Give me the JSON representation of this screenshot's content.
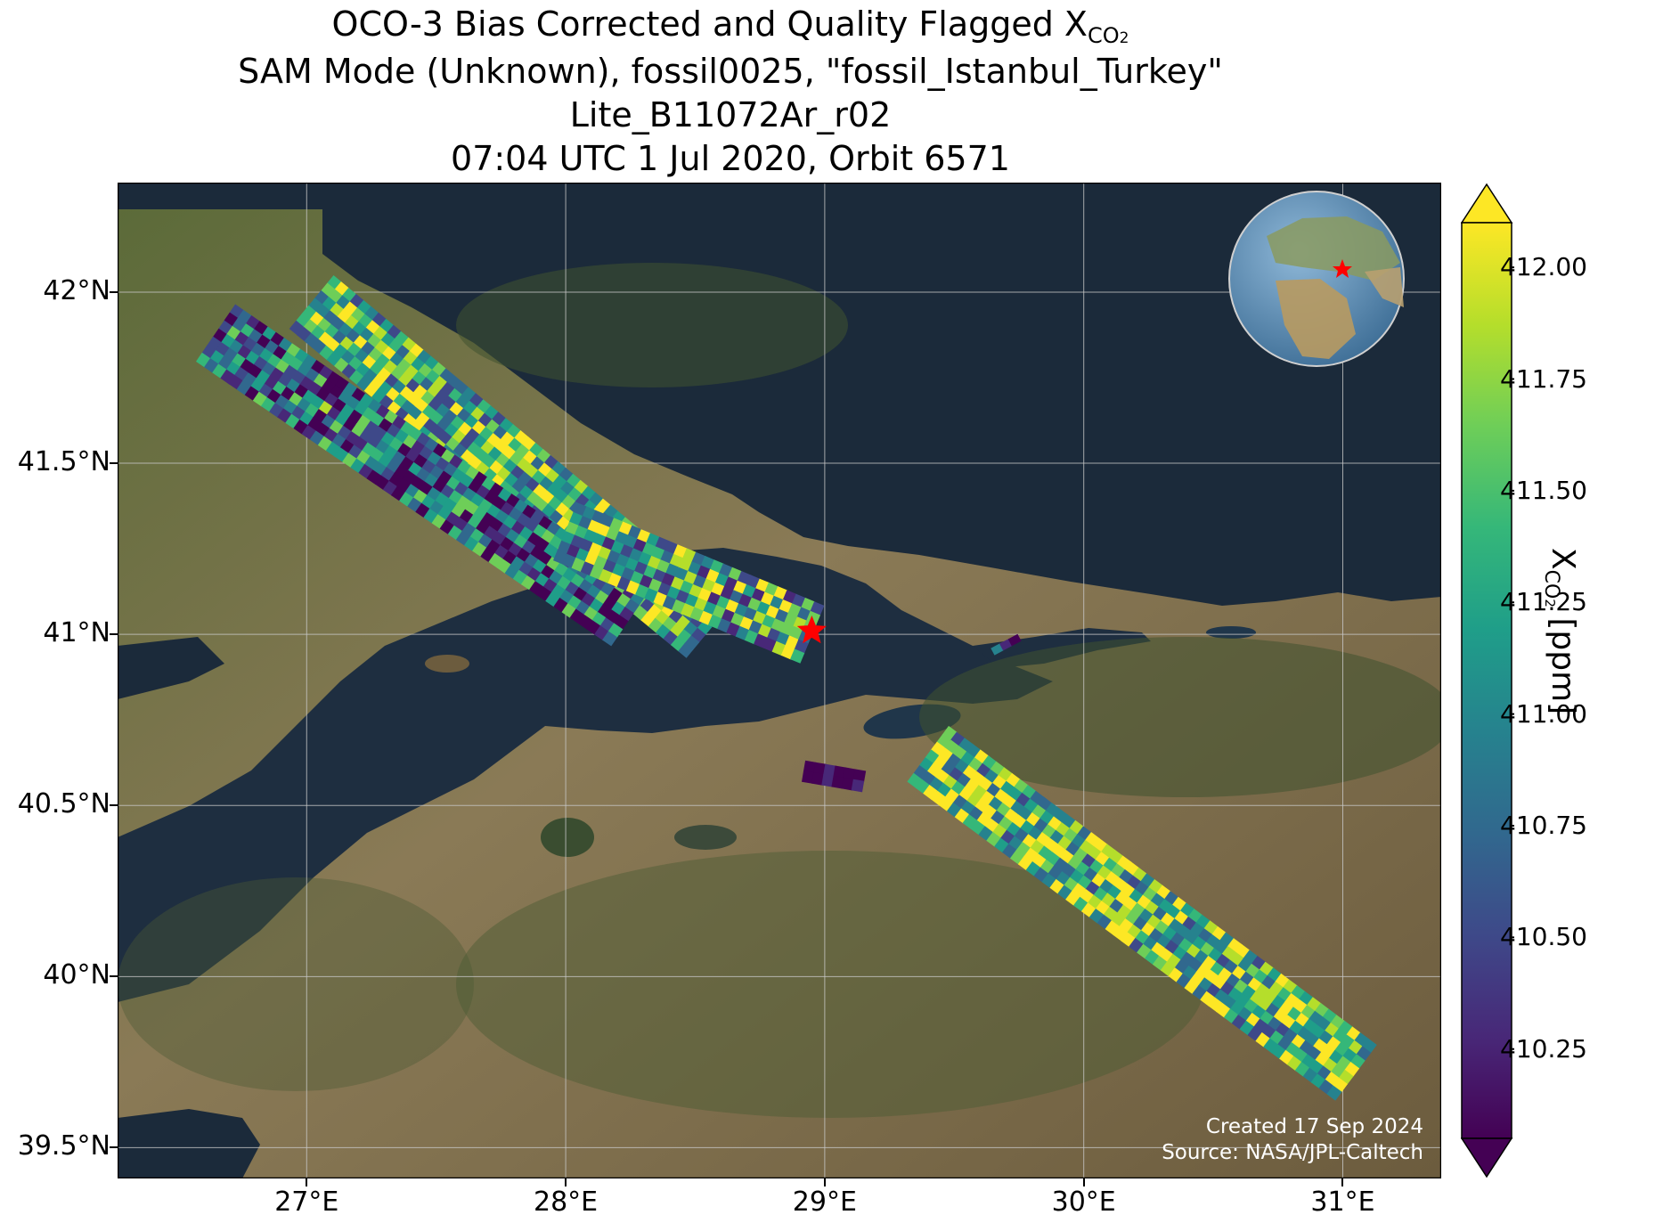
{
  "title": {
    "line1_prefix": "OCO-3 Bias Corrected and Quality Flagged X",
    "line1_sub": "CO",
    "line1_sub2": "2",
    "line2": "SAM Mode (Unknown), fossil0025, \"fossil_Istanbul_Turkey\"",
    "line3": "Lite_B11072Ar_r02",
    "line4": "07:04 UTC 1 Jul 2020, Orbit 6571"
  },
  "map": {
    "lon_range": [
      26.27,
      31.38
    ],
    "lat_range": [
      39.41,
      42.32
    ],
    "lon_ticks": [
      {
        "value": 27,
        "label": "27°E"
      },
      {
        "value": 28,
        "label": "28°E"
      },
      {
        "value": 29,
        "label": "29°E"
      },
      {
        "value": 30,
        "label": "30°E"
      },
      {
        "value": 31,
        "label": "31°E"
      }
    ],
    "lat_ticks": [
      {
        "value": 42.0,
        "label": "42°N"
      },
      {
        "value": 41.5,
        "label": "41.5°N"
      },
      {
        "value": 41.0,
        "label": "41°N"
      },
      {
        "value": 40.5,
        "label": "40.5°N"
      },
      {
        "value": 40.0,
        "label": "40°N"
      },
      {
        "value": 39.5,
        "label": "39.5°N"
      }
    ],
    "target": {
      "name": "fossil_Istanbul_Turkey",
      "lon": 28.95,
      "lat": 41.01,
      "marker": "red-star",
      "color": "#ff0000"
    },
    "swaths": [
      {
        "from": [
          27.02,
          41.97
        ],
        "to": [
          28.55,
          41.01
        ],
        "width_deg": 0.2,
        "mean": 411.4
      },
      {
        "from": [
          26.65,
          41.88
        ],
        "to": [
          28.25,
          41.05
        ],
        "width_deg": 0.2,
        "mean": 410.8
      },
      {
        "from": [
          28.0,
          41.3
        ],
        "to": [
          28.95,
          41.0
        ],
        "width_deg": 0.18,
        "mean": 411.2
      },
      {
        "from": [
          29.4,
          40.65
        ],
        "to": [
          31.05,
          39.72
        ],
        "width_deg": 0.2,
        "mean": 411.5
      },
      {
        "from": [
          29.65,
          40.95
        ],
        "to": [
          29.75,
          40.99
        ],
        "width_deg": 0.02,
        "mean": 410.1
      },
      {
        "from": [
          28.92,
          40.6
        ],
        "to": [
          29.15,
          40.57
        ],
        "width_deg": 0.06,
        "mean": 410.3
      }
    ],
    "credits": [
      "Created 17 Sep 2024",
      "Source: NASA/JPL-Caltech"
    ],
    "inset": {
      "type": "globe",
      "target_marker": "red-star"
    }
  },
  "colorbar": {
    "colormap": "viridis",
    "vmin": 410.05,
    "vmax": 412.1,
    "extend": "both",
    "ticks": [
      {
        "value": 412.0,
        "label": "412.00"
      },
      {
        "value": 411.75,
        "label": "411.75"
      },
      {
        "value": 411.5,
        "label": "411.50"
      },
      {
        "value": 411.25,
        "label": "411.25"
      },
      {
        "value": 411.0,
        "label": "411.00"
      },
      {
        "value": 410.75,
        "label": "410.75"
      },
      {
        "value": 410.5,
        "label": "410.50"
      },
      {
        "value": 410.25,
        "label": "410.25"
      }
    ],
    "label_prefix": "X",
    "label_sub": "CO",
    "label_sub2": "2",
    "label_suffix": " [ppm]"
  },
  "colors": {
    "sea": "#1b2a3a",
    "land": "#7d6a48",
    "vegetation": "#45552f",
    "grid": "#c8c8c8",
    "star": "#ff0000",
    "viridis": [
      "#440154",
      "#482878",
      "#3e4989",
      "#31688e",
      "#26828e",
      "#1f9e89",
      "#35b779",
      "#6ece58",
      "#b5de2b",
      "#fde725"
    ]
  }
}
